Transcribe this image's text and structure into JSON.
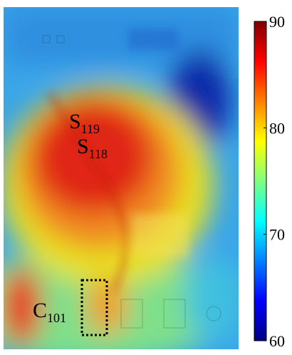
{
  "labels": [
    {
      "main": "S",
      "sub": "119"
    },
    {
      "main": "S",
      "sub": "118"
    },
    {
      "main": "C",
      "sub": "101"
    }
  ],
  "colorbar": {
    "lim": [
      60,
      90
    ],
    "ticks": [
      60,
      70,
      80,
      90
    ],
    "colors": [
      "#00007f",
      "#0000ff",
      "#0080ff",
      "#00ffff",
      "#80ff80",
      "#ffff00",
      "#ff8000",
      "#ff0000",
      "#7f0000"
    ]
  }
}
